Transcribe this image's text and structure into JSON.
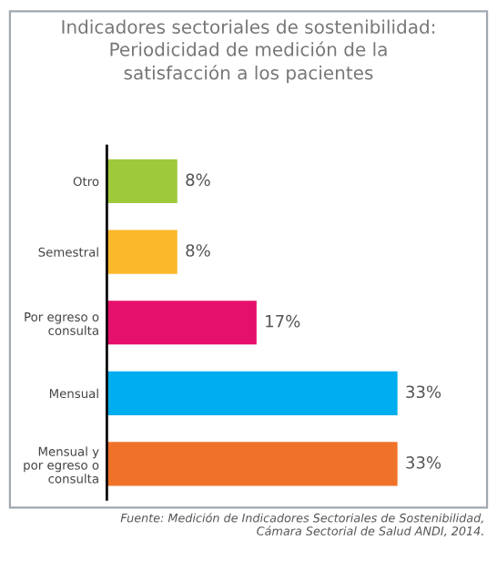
{
  "chart_data": {
    "type": "bar",
    "orientation": "horizontal",
    "title": "Indicadores sectoriales de sostenibilidad:\nPeriodicidad de medición de la\nsatisfacción a los pacientes",
    "categories": [
      "Otro",
      "Semestral",
      "Por egreso o\nconsulta",
      "Mensual",
      "Mensual y\npor egreso o\nconsulta"
    ],
    "values": [
      8,
      8,
      17,
      33,
      33
    ],
    "colors": [
      "#9dc93b",
      "#fbb829",
      "#e5106b",
      "#00adef",
      "#f07229"
    ],
    "value_labels": [
      "8%",
      "8%",
      "17%",
      "33%",
      "33%"
    ],
    "annotations": [
      "Fuente: Medición de Indicadores Sectoriales de Sostenibilidad,\nCámara Sectorial de Salud ANDI, 2014."
    ]
  }
}
